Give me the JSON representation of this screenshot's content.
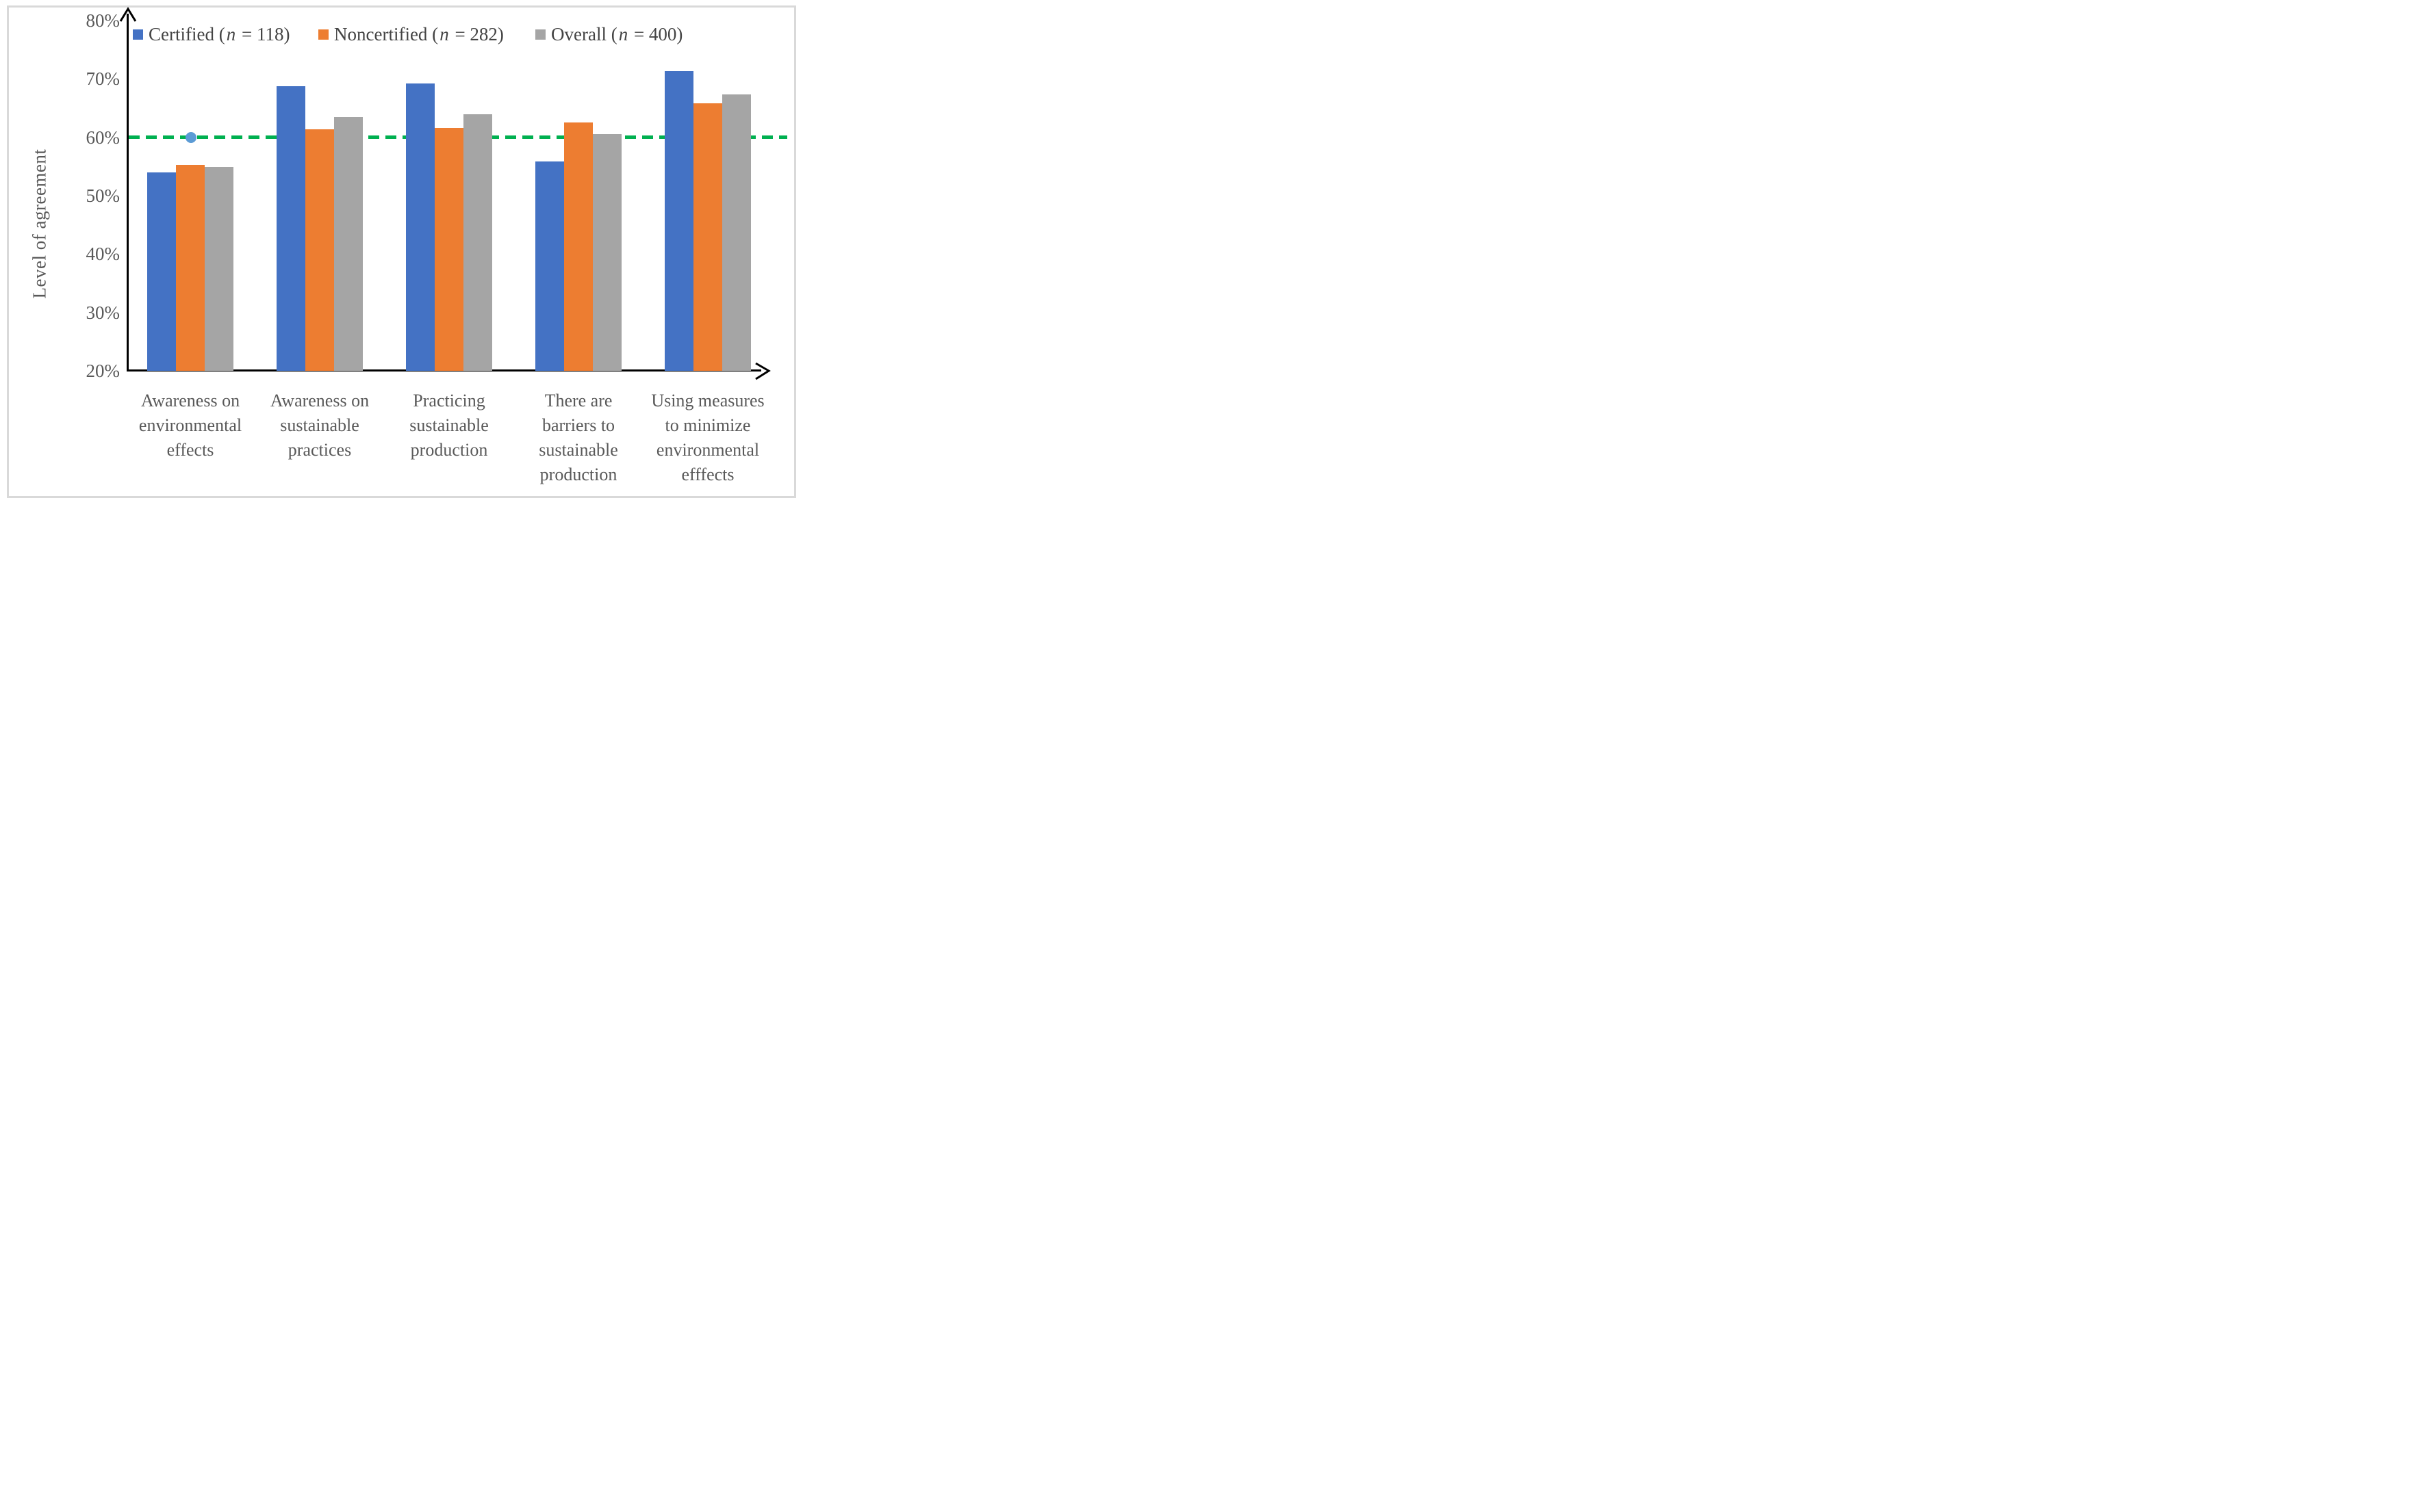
{
  "figure": {
    "y_axis_title": "Level of agreement",
    "legend": [
      {
        "prefix": "Certified (",
        "n_symbol": "n",
        "suffix": " = 118)"
      },
      {
        "prefix": "Noncertified (",
        "n_symbol": "n",
        "suffix": " = 282)"
      },
      {
        "prefix": "Overall (",
        "n_symbol": "n",
        "suffix": " = 400)"
      }
    ],
    "category_lines": [
      [
        "Awareness on",
        "environmental",
        "effects"
      ],
      [
        "Awareness on",
        "sustainable",
        "practices"
      ],
      [
        "Practicing",
        "sustainable",
        "production"
      ],
      [
        "There are",
        "barriers to",
        "sustainable",
        "production"
      ],
      [
        "Using measures",
        "to minimize",
        "environmental",
        "efffects"
      ]
    ],
    "colors": {
      "axis": "#000000",
      "text": "#595959",
      "figure_border": "#D9D9D9"
    }
  },
  "chart_data": {
    "type": "bar",
    "title": "",
    "xlabel": "",
    "ylabel": "Level of agreement",
    "categories": [
      "Awareness on environmental effects",
      "Awareness on sustainable practices",
      "Practicing sustainable production",
      "There are barriers to sustainable production",
      "Using measures to minimize environmental efffects"
    ],
    "series": [
      {
        "name": "Certified (n = 118)",
        "color": "#4472C4",
        "values": [
          54.0,
          68.7,
          69.2,
          55.9,
          71.3
        ]
      },
      {
        "name": "Noncertified (n = 282)",
        "color": "#ED7D31",
        "values": [
          55.3,
          61.4,
          61.6,
          62.5,
          65.8
        ]
      },
      {
        "name": "Overall (n = 400)",
        "color": "#A5A5A5",
        "values": [
          54.9,
          63.5,
          63.9,
          60.5,
          67.4
        ]
      }
    ],
    "ylim": [
      20,
      80
    ],
    "yticks": [
      "20%",
      "30%",
      "40%",
      "50%",
      "60%",
      "70%",
      "80%"
    ],
    "grid": false,
    "legend_position": "top",
    "reference_line": {
      "value": 60,
      "color": "#00B050",
      "style": "dashed"
    },
    "point_marker": {
      "category_index": 0,
      "value": 60,
      "color": "#5B9BD5"
    }
  }
}
